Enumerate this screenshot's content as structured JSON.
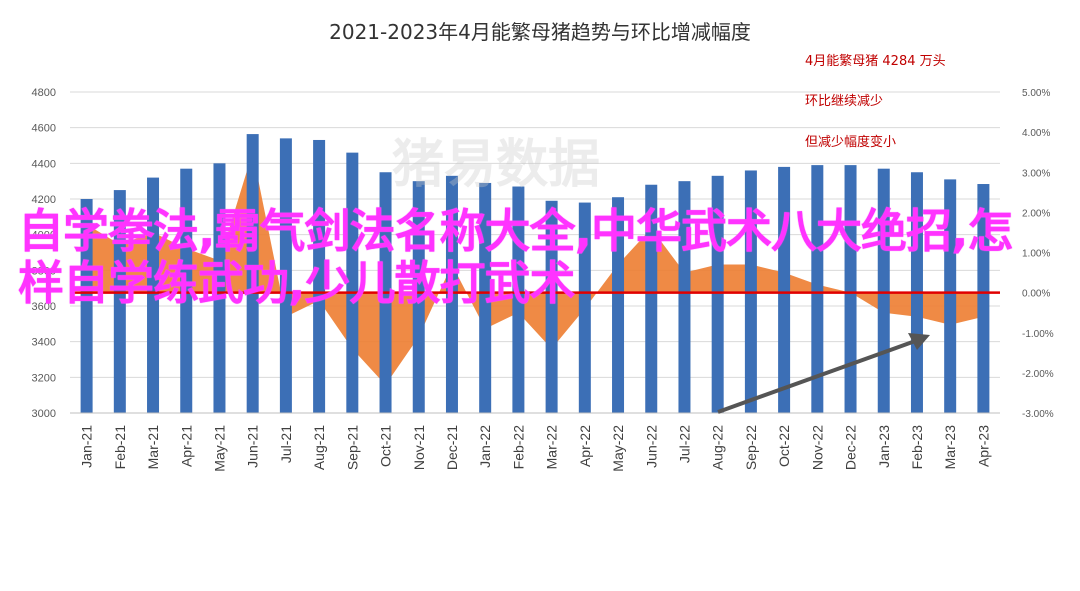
{
  "colors": {
    "bar": "#3c6fb6",
    "area": "#ed7d31",
    "zero_line": "#e00000",
    "arrow": "#555555",
    "overlay_text": "#ff33ff",
    "annotation": "#c00000",
    "grid": "#d9d9d9"
  },
  "watermark": "猪易数据",
  "overlay_text": "自学拳法,霸气剑法名称大全,中华武术八大绝招,怎样自学练武功,少儿散打武术",
  "annotations": [
    "4月能繁母猪 4284 万头",
    "环比继续减少",
    "但减少幅度变小"
  ],
  "chart_data": {
    "type": "bar",
    "title": "2021-2023年4月能繁母猪趋势与环比增减幅度",
    "categories": [
      "Jan-21",
      "Feb-21",
      "Mar-21",
      "Apr-21",
      "May-21",
      "Jun-21",
      "Jul-21",
      "Aug-21",
      "Sep-21",
      "Oct-21",
      "Nov-21",
      "Dec-21",
      "Jan-22",
      "Feb-22",
      "Mar-22",
      "Apr-22",
      "May-22",
      "Jun-22",
      "Jul-22",
      "Aug-22",
      "Sep-22",
      "Oct-22",
      "Nov-22",
      "Dec-22",
      "Jan-23",
      "Feb-23",
      "Mar-23",
      "Apr-23"
    ],
    "y_left": {
      "min": 3000,
      "max": 4800,
      "ticks": [
        3000,
        3200,
        3400,
        3600,
        3800,
        4000,
        4200,
        4400,
        4600,
        4800
      ]
    },
    "y_right": {
      "min": -3,
      "max": 5,
      "ticks": [
        "-3.00%",
        "-2.00%",
        "-1.00%",
        "0.00%",
        "1.00%",
        "2.00%",
        "3.00%",
        "4.00%",
        "5.00%"
      ]
    },
    "series": [
      {
        "type": "bar",
        "axis": "left",
        "values": [
          4200,
          4250,
          4320,
          4370,
          4400,
          4564,
          4540,
          4531,
          4460,
          4350,
          4300,
          4330,
          4290,
          4270,
          4190,
          4180,
          4210,
          4280,
          4300,
          4330,
          4360,
          4380,
          4390,
          4390,
          4370,
          4350,
          4310,
          4284
        ]
      },
      {
        "type": "area",
        "axis": "right",
        "values": [
          1.7,
          1.2,
          1.5,
          1.1,
          0.8,
          3.5,
          -0.6,
          -0.2,
          -1.4,
          -2.3,
          -1.1,
          0.7,
          -0.9,
          -0.5,
          -1.4,
          -0.4,
          0.7,
          1.6,
          0.5,
          0.7,
          0.7,
          0.5,
          0.2,
          0.0,
          -0.5,
          -0.6,
          -0.8,
          -0.6
        ]
      }
    ],
    "grid": true
  }
}
